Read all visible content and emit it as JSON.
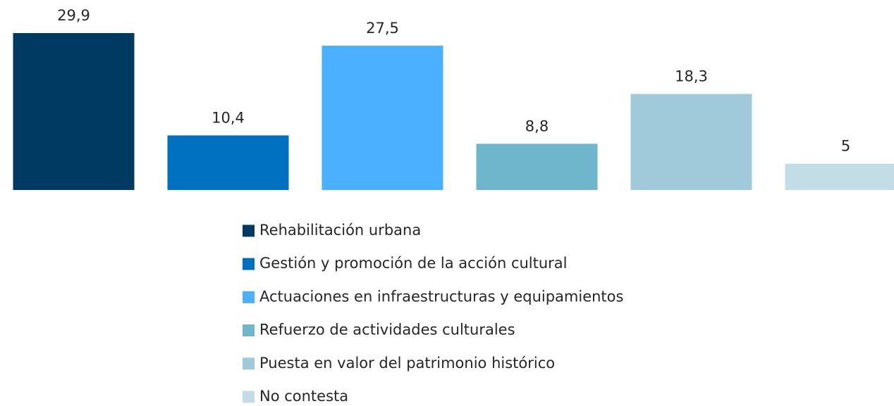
{
  "chart_data": {
    "type": "bar",
    "series": [
      {
        "name": "Rehabilitación urbana",
        "color": "#003a63",
        "values": [
          29.9
        ],
        "value_labels": [
          "29,9"
        ]
      },
      {
        "name": "Gestión y promoción de la acción cultural",
        "color": "#0070c0",
        "values": [
          10.4
        ],
        "value_labels": [
          "10,4"
        ]
      },
      {
        "name": "Actuaciones en infraestructuras y equipamientos",
        "color": "#4bb0ff",
        "values": [
          27.5
        ],
        "value_labels": [
          "27,5"
        ]
      },
      {
        "name": "Refuerzo de actividades culturales",
        "color": "#6fb5cc",
        "values": [
          8.8
        ],
        "value_labels": [
          "8,8"
        ]
      },
      {
        "name": "Puesta en valor del patrimonio histórico",
        "color": "#a0c9d9",
        "values": [
          18.3
        ],
        "value_labels": [
          "18,3"
        ]
      },
      {
        "name": "No contesta",
        "color": "#c3dde6",
        "values": [
          5
        ],
        "value_labels": [
          "5"
        ]
      }
    ],
    "ylim": [
      0,
      36.2
    ],
    "legend": "bottom"
  }
}
